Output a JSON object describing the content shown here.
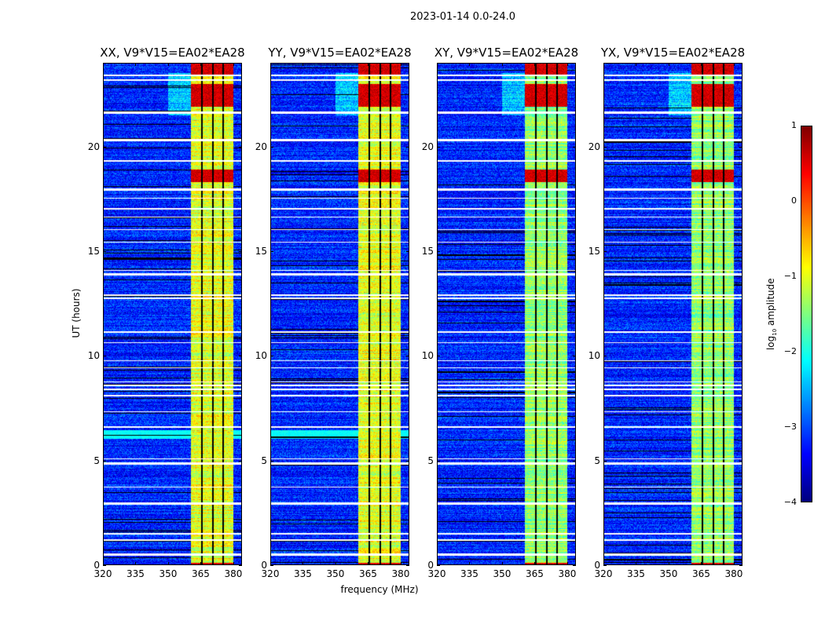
{
  "chart_data": {
    "type": "heatmap",
    "title": "2023-01-14 0.0-24.0",
    "xlabel": "frequency (MHz)",
    "ylabel": "UT (hours)",
    "xlim": [
      320,
      384
    ],
    "ylim": [
      0,
      24
    ],
    "xticks": [
      320,
      335,
      350,
      365,
      380
    ],
    "yticks": [
      0,
      5,
      10,
      15,
      20
    ],
    "panels": [
      {
        "title": "XX, V9*V15=EA02*EA28"
      },
      {
        "title": "YY, V9*V15=EA02*EA28"
      },
      {
        "title": "XY, V9*V15=EA02*EA28"
      },
      {
        "title": "YX, V9*V15=EA02*EA28"
      }
    ],
    "colormap": "jet",
    "colorbar": {
      "label_prefix": "log",
      "label_sub": "10",
      "label_suffix": " amplitude",
      "range": [
        -4,
        1
      ],
      "ticks": [
        "1",
        "0",
        "−1",
        "−2",
        "−3",
        "−4"
      ]
    },
    "background_level": -3.2,
    "band_level": -1.0,
    "band_mhz": [
      360.5,
      380
    ],
    "subband_edges_mhz": [
      365.5,
      370.5,
      375.3
    ],
    "bright_hours": [
      [
        18.3,
        18.9
      ],
      [
        21.9,
        23.0
      ],
      [
        23.4,
        24.0
      ],
      [
        0.0,
        0.12
      ]
    ],
    "bright_level": 0.6,
    "flagged_hours": [
      [
        0.45,
        0.55
      ],
      [
        1.15,
        1.25
      ],
      [
        1.45,
        1.52
      ],
      [
        2.9,
        3.0
      ],
      [
        3.7,
        3.76
      ],
      [
        4.8,
        4.9
      ],
      [
        5.05,
        5.1
      ],
      [
        6.55,
        6.62
      ],
      [
        7.3,
        7.36
      ],
      [
        8.05,
        8.15
      ],
      [
        8.35,
        8.45
      ],
      [
        8.55,
        8.62
      ],
      [
        8.72,
        8.78
      ],
      [
        9.4,
        9.46
      ],
      [
        9.75,
        9.8
      ],
      [
        10.6,
        10.66
      ],
      [
        11.1,
        11.16
      ],
      [
        12.7,
        12.8
      ],
      [
        12.88,
        12.93
      ],
      [
        13.85,
        13.95
      ],
      [
        14.05,
        14.1
      ],
      [
        15.4,
        15.45
      ],
      [
        16.0,
        16.06
      ],
      [
        16.6,
        16.66
      ],
      [
        17.0,
        17.05
      ],
      [
        17.5,
        17.55
      ],
      [
        17.9,
        18.0
      ],
      [
        19.28,
        19.36
      ],
      [
        20.25,
        20.36
      ],
      [
        21.55,
        21.66
      ],
      [
        23.15,
        23.22
      ],
      [
        23.35,
        23.42
      ]
    ]
  }
}
